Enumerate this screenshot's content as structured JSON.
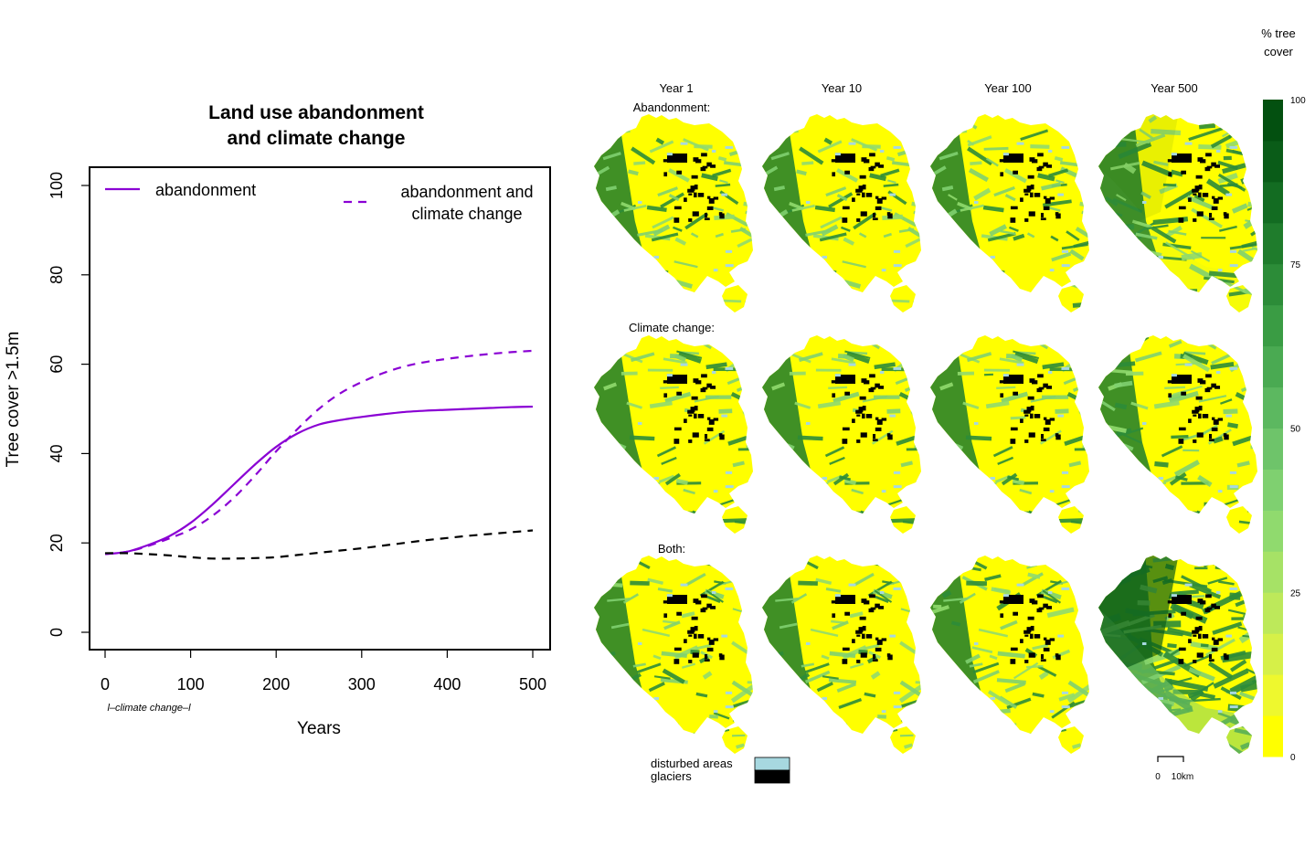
{
  "chart_data": [
    {
      "type": "line",
      "title": "Land use abandonment\nand climate change",
      "xlabel": "Years",
      "ylabel": "Tree cover >1.5m",
      "xlim": [
        0,
        500
      ],
      "ylim": [
        0,
        100
      ],
      "xticks": [
        "0",
        "100",
        "200",
        "300",
        "400",
        "500"
      ],
      "yticks": [
        "0",
        "20",
        "40",
        "60",
        "80",
        "100"
      ],
      "annotation": "l–climate change–l",
      "legend_placement": "top",
      "grid": false,
      "x": [
        0,
        25,
        50,
        75,
        100,
        125,
        150,
        175,
        200,
        225,
        250,
        275,
        300,
        325,
        350,
        375,
        400,
        425,
        450,
        475,
        500
      ],
      "series": [
        {
          "name": "abandonment",
          "style": "solid",
          "color": "#8a00d4",
          "values": [
            17.5,
            18,
            19.5,
            21.5,
            24.5,
            28.5,
            33,
            37.5,
            41.5,
            44.5,
            46.5,
            47.5,
            48.2,
            48.8,
            49.3,
            49.6,
            49.8,
            50,
            50.2,
            50.4,
            50.5
          ]
        },
        {
          "name": "abandonment and\nclimate change",
          "style": "dashed",
          "color": "#8a00d4",
          "values": [
            17.5,
            18,
            19.3,
            21,
            23,
            26,
            30,
            35,
            40.5,
            45.5,
            50,
            53.5,
            56,
            58,
            59.5,
            60.5,
            61.2,
            61.8,
            62.3,
            62.7,
            63
          ]
        },
        {
          "name": "",
          "style": "dashed",
          "color": "#000000",
          "values": [
            17.7,
            17.7,
            17.5,
            17.2,
            16.8,
            16.5,
            16.5,
            16.6,
            16.8,
            17.3,
            17.8,
            18.3,
            18.8,
            19.4,
            20,
            20.6,
            21.1,
            21.6,
            22,
            22.4,
            22.8
          ]
        }
      ]
    },
    {
      "type": "heatmap",
      "columns": [
        "Year 1",
        "Year 10",
        "Year 100",
        "Year 500"
      ],
      "rows": [
        "Abandonment:",
        "Climate change:",
        "Both:"
      ],
      "green_level": [
        [
          0.25,
          0.26,
          0.3,
          0.55
        ],
        [
          0.25,
          0.26,
          0.28,
          0.38
        ],
        [
          0.25,
          0.26,
          0.32,
          0.88
        ]
      ],
      "colorbar": {
        "title": "% tree\ncover",
        "ticks": [
          "0",
          "25",
          "50",
          "75",
          "100"
        ],
        "range": [
          0,
          100
        ],
        "colors": [
          "#ffff00",
          "#eef82e",
          "#d6f048",
          "#bde95a",
          "#a6e266",
          "#90da6e",
          "#7fd070",
          "#6ec46a",
          "#5cb860",
          "#4aaa52",
          "#3a9c44",
          "#2c8c38",
          "#1f7c2c",
          "#136c22",
          "#0a5c18",
          "#035010"
        ]
      },
      "legend": [
        {
          "label": "disturbed areas",
          "color": "#a7d8e0"
        },
        {
          "label": "glaciers",
          "color": "#000000"
        }
      ],
      "scalebar": [
        "0",
        "10km"
      ]
    }
  ]
}
